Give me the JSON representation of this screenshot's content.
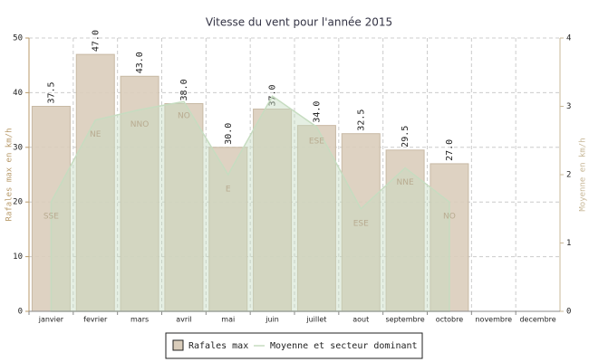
{
  "chart_data": {
    "type": "bar",
    "title": "Vitesse du vent pour l'année 2015",
    "y_label": "Rafales max en km/h",
    "y2_label": "Moyenne en km/h",
    "categories": [
      "janvier",
      "fevrier",
      "mars",
      "avril",
      "mai",
      "juin",
      "juillet",
      "aout",
      "septembre",
      "octobre",
      "novembre",
      "decembre"
    ],
    "series": [
      {
        "name": "Rafales max",
        "color": "#dacdbb",
        "values": [
          37.5,
          47,
          43,
          38,
          30,
          37,
          34,
          32.5,
          29.5,
          27,
          null,
          null
        ],
        "value_labels": [
          "37.5",
          "47.0",
          "43.0",
          "38.0",
          "30.0",
          "37.0",
          "34.0",
          "32.5",
          "29.5",
          "27.0",
          null,
          null
        ]
      },
      {
        "name": "Moyenne et secteur dominant",
        "color": "#c6dcc0",
        "axis": "y2",
        "type": "area",
        "values": [
          1.6,
          2.8,
          2.95,
          3.07,
          2.0,
          3.15,
          2.7,
          1.5,
          2.1,
          1.6,
          null,
          null
        ],
        "point_labels": [
          "SSE",
          "NE",
          "NNO",
          "NO",
          "E",
          null,
          "ESE",
          "ESE",
          "NNE",
          "NO",
          null,
          null
        ]
      }
    ],
    "ylim": [
      0,
      50
    ],
    "yticks": [
      0,
      10,
      20,
      30,
      40,
      50
    ],
    "y2lim": [
      0,
      4
    ],
    "y2ticks": [
      0,
      1,
      2,
      3,
      4
    ],
    "grid": true
  }
}
